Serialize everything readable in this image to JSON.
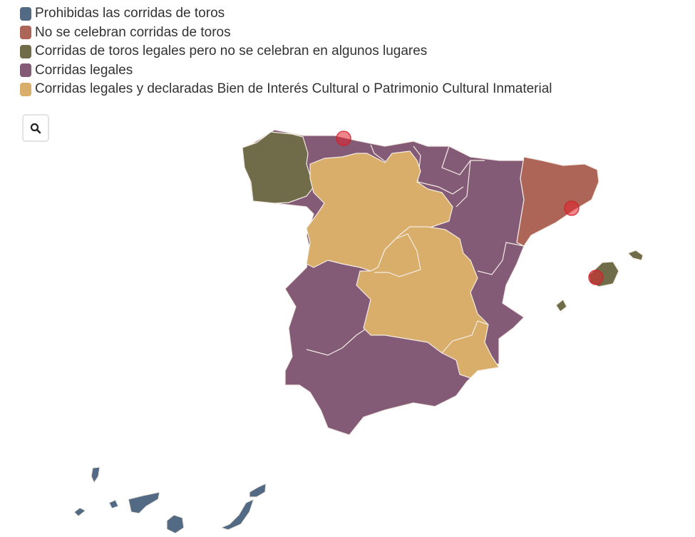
{
  "legend": {
    "items": [
      {
        "label": "Prohibidas las corridas de toros",
        "color": "#536a85"
      },
      {
        "label": "No se celebran corridas de toros",
        "color": "#ac6556"
      },
      {
        "label": "Corridas de toros legales pero no se celebran en algunos lugares",
        "color": "#706c4a"
      },
      {
        "label": "Corridas legales",
        "color": "#845b76"
      },
      {
        "label": "Corridas legales y declaradas Bien de Interés Cultural o Patrimonio Cultural Inmaterial",
        "color": "#d9ae6a"
      }
    ]
  },
  "controls": {
    "zoom_icon": "search-icon"
  },
  "map": {
    "marker_color": "#e1232d",
    "border_color": "#f3ece4"
  }
}
